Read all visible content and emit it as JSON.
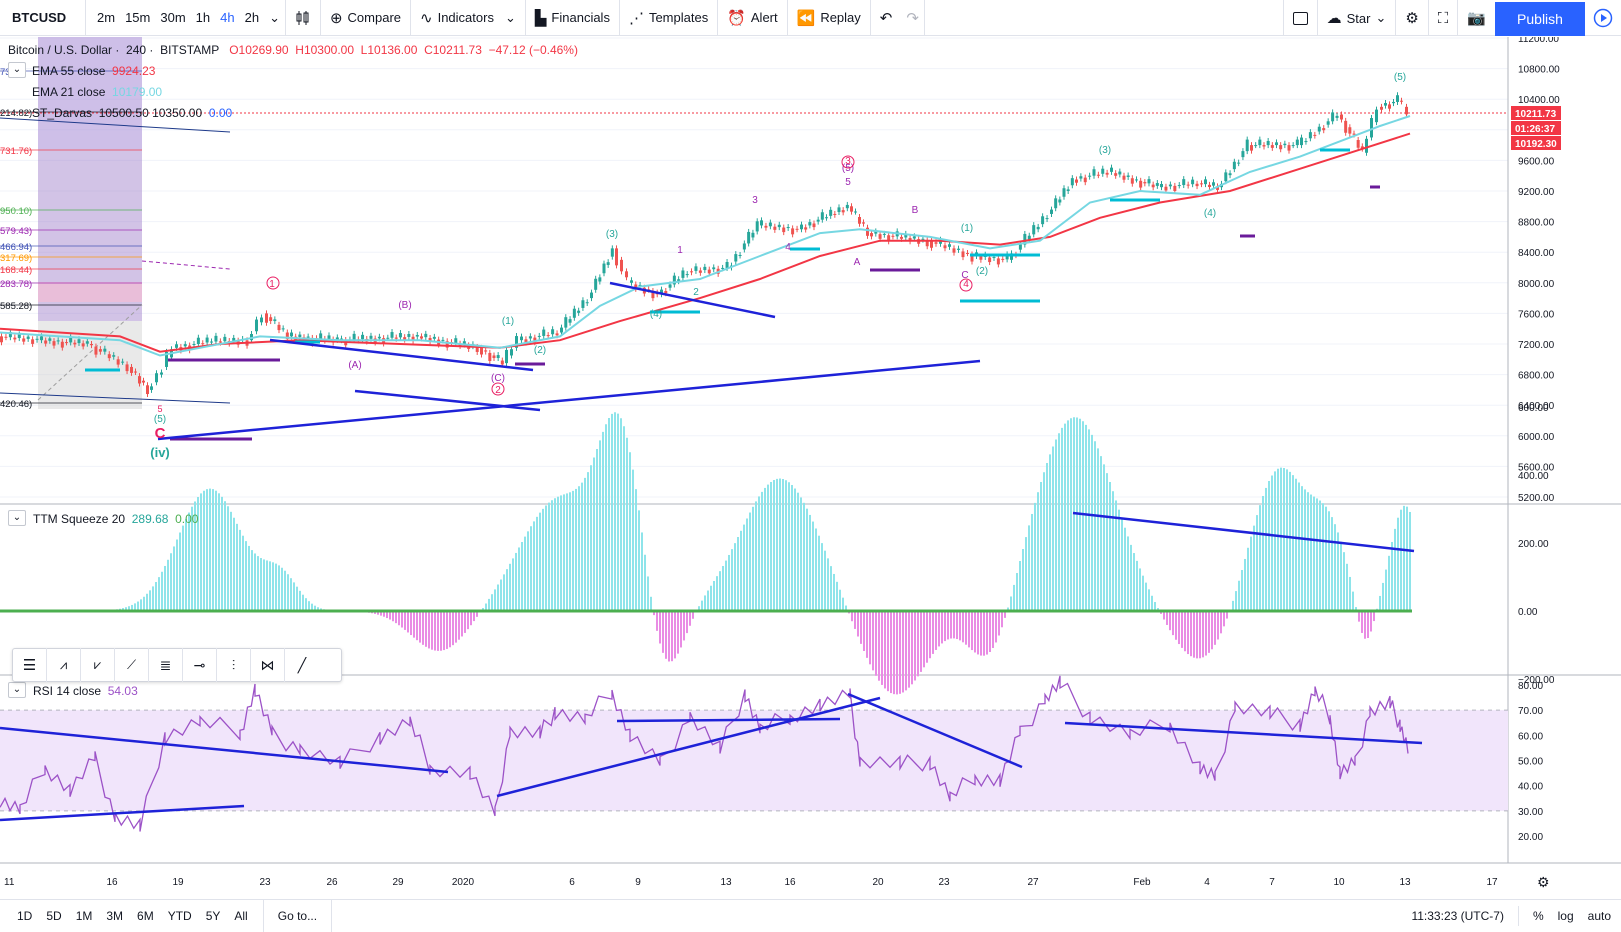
{
  "toolbar": {
    "symbol": "BTCUSD",
    "timeframes": [
      "2m",
      "15m",
      "30m",
      "1h",
      "4h",
      "2h"
    ],
    "active_timeframe": "4h",
    "compare_label": "Compare",
    "indicators_label": "Indicators",
    "financials_label": "Financials",
    "templates_label": "Templates",
    "alert_label": "Alert",
    "replay_label": "Replay",
    "star_label": "Star",
    "publish_label": "Publish"
  },
  "main_legend": {
    "title": "Bitcoin / U.S. Dollar",
    "interval": "240",
    "exchange": "BITSTAMP",
    "open": "O10269.90",
    "high": "H10300.00",
    "low": "L10136.00",
    "close": "C10211.73",
    "change": "−47.12 (−0.46%)",
    "ema55_label": "EMA 55 close",
    "ema55_value": "9924.23",
    "ema21_label": "EMA 21 close",
    "ema21_value": "10179.00",
    "darvas_label": "ST_Darvas",
    "darvas_values": "10500.50  10350.00",
    "darvas_extra": "0.00"
  },
  "fib_labels": [
    "731.76)",
    "950.10)",
    "579.43)",
    "466.94)",
    "317.69)",
    "168.44)",
    "283.78)",
    "585.28)",
    "420.46)",
    "214.82)",
    "73"
  ],
  "price_scale": [
    "11200.00",
    "10800.00",
    "10400.00",
    "10000.00",
    "9600.00",
    "9200.00",
    "8800.00",
    "8400.00",
    "8000.00",
    "7600.00",
    "7200.00",
    "6800.00",
    "6400.00",
    "6000.00",
    "5600.00",
    "5200.00"
  ],
  "price_badges": {
    "last": "10211.73",
    "countdown": "01:26:37",
    "ema": "10192.30"
  },
  "wave_labels": [
    {
      "text": "C",
      "color": "#e91e63"
    },
    {
      "text": "(iv)",
      "color": "#26a69a"
    },
    {
      "text": "(5)",
      "color": "#26a69a"
    },
    {
      "text": "5",
      "color": "#e91e63"
    },
    {
      "text": "1",
      "color": "#e91e63"
    },
    {
      "text": "(A)",
      "color": "#9c27b0"
    },
    {
      "text": "(B)",
      "color": "#9c27b0"
    },
    {
      "text": "(C)",
      "color": "#9c27b0"
    },
    {
      "text": "2",
      "color": "#e91e63"
    },
    {
      "text": "(1)",
      "color": "#26a69a"
    },
    {
      "text": "(2)",
      "color": "#26a69a"
    },
    {
      "text": "(3)",
      "color": "#26a69a"
    },
    {
      "text": "(4)",
      "color": "#26a69a"
    },
    {
      "text": "1",
      "color": "#9c27b0"
    },
    {
      "text": "2",
      "color": "#26a69a"
    },
    {
      "text": "3",
      "color": "#9c27b0"
    },
    {
      "text": "4",
      "color": "#9c27b0"
    },
    {
      "text": "5",
      "color": "#9c27b0"
    },
    {
      "text": "(5)",
      "color": "#9c27b0"
    },
    {
      "text": "3",
      "color": "#e91e63"
    },
    {
      "text": "A",
      "color": "#9c27b0"
    },
    {
      "text": "B",
      "color": "#9c27b0"
    },
    {
      "text": "C",
      "color": "#9c27b0"
    },
    {
      "text": "(1)",
      "color": "#26a69a"
    },
    {
      "text": "(2)",
      "color": "#26a69a"
    },
    {
      "text": "4",
      "color": "#e91e63"
    },
    {
      "text": "(3)",
      "color": "#26a69a"
    },
    {
      "text": "(4)",
      "color": "#26a69a"
    },
    {
      "text": "(5)",
      "color": "#26a69a"
    }
  ],
  "squeeze": {
    "label": "TTM Squeeze 20",
    "value1": "289.68",
    "value2": "0.00",
    "scale": [
      "600.00",
      "400.00",
      "200.00",
      "0.00",
      "−200.00"
    ]
  },
  "rsi": {
    "label": "RSI 14 close",
    "value": "54.03",
    "scale": [
      "80.00",
      "70.00",
      "60.00",
      "50.00",
      "40.00",
      "30.00",
      "20.00"
    ]
  },
  "time_axis": [
    "11",
    "16",
    "19",
    "23",
    "26",
    "29",
    "2020",
    "6",
    "9",
    "13",
    "16",
    "20",
    "23",
    "27",
    "Feb",
    "4",
    "7",
    "10",
    "13",
    "17"
  ],
  "bottom": {
    "ranges": [
      "1D",
      "5D",
      "1M",
      "3M",
      "6M",
      "YTD",
      "5Y",
      "All"
    ],
    "goto_label": "Go to...",
    "clock": "11:33:23 (UTC-7)",
    "percent_label": "%",
    "log_label": "log",
    "auto_label": "auto"
  },
  "colors": {
    "accent": "#2962ff",
    "ema55": "#f23645",
    "ema21": "#76d7e2",
    "trend_lines": "#1e22d8",
    "rsi_line": "#9c52c7",
    "rsi_band": "#f1e5fb",
    "squeeze_pos": "#8ee4ea",
    "squeeze_neg": "#e98ce4",
    "squeeze_zero": "#4caf50",
    "candle_up": "#26a69a",
    "candle_down": "#ef5350"
  }
}
